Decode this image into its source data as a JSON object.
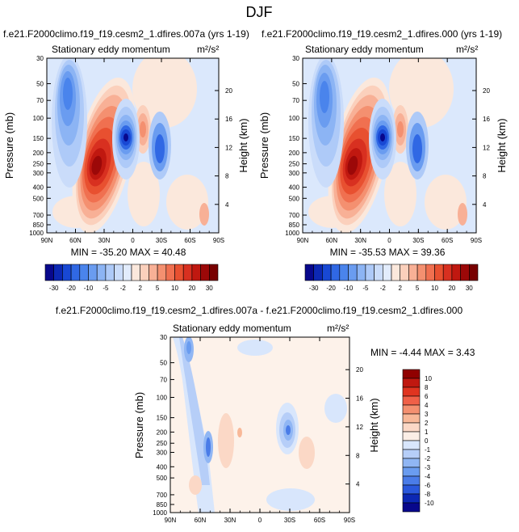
{
  "figure_title": "DJF",
  "colors": {
    "neg": [
      "#08088c",
      "#0c28b4",
      "#1848d4",
      "#3068e4",
      "#4a84ec",
      "#6a9cf0",
      "#8cb4f4",
      "#aecaf8",
      "#cadcfa",
      "#e2ecfc"
    ],
    "pos": [
      "#fbe8dc",
      "#fbd0bc",
      "#f8b096",
      "#f49070",
      "#f07050",
      "#e85030",
      "#d83020",
      "#c01810",
      "#9c0808",
      "#780000"
    ],
    "diff": [
      "#08088c",
      "#0c28b4",
      "#2a58dc",
      "#4a7ce8",
      "#6a9cf0",
      "#90b6f4",
      "#b6cef8",
      "#d8e6fc",
      "#fbeee6",
      "#fbd8c6",
      "#f8b898",
      "#f49070",
      "#f06048",
      "#e03420",
      "#c01810",
      "#900000"
    ],
    "background_model": "#dbe8fc",
    "background_diff": "#fdf2ea"
  },
  "chart_data": [
    {
      "id": "panel1",
      "type": "heatmap",
      "title": "f.e21.F2000climo.f19_f19.cesm2_1.dfires.007a (yrs 1-19)",
      "left_label": "Stationary eddy momentum",
      "units": "m²/s²",
      "ylabel": "Pressure (mb)",
      "ylabel_right": "Height (km)",
      "x_ticks": [
        "90N",
        "60N",
        "30N",
        "0",
        "30S",
        "60S",
        "90S"
      ],
      "x_range": [
        90,
        -90
      ],
      "y_ticks": [
        "30",
        "50",
        "70",
        "100",
        "150",
        "200",
        "250",
        "300",
        "400",
        "500",
        "700",
        "850",
        "1000"
      ],
      "y_range_mb": [
        30,
        1000
      ],
      "height_ticks": [
        "20",
        "16",
        "12",
        "8",
        "4"
      ],
      "stats": "MIN = -35.20   MAX = 40.48",
      "min": -35.2,
      "max": 40.48
    },
    {
      "id": "panel2",
      "type": "heatmap",
      "title": "f.e21.F2000climo.f19_f19.cesm2_1.dfires.000 (yrs 1-19)",
      "left_label": "Stationary eddy momentum",
      "units": "m²/s²",
      "ylabel": "Pressure (mb)",
      "ylabel_right": "Height (km)",
      "x_ticks": [
        "90N",
        "60N",
        "30N",
        "0",
        "30S",
        "60S",
        "90S"
      ],
      "x_range": [
        90,
        -90
      ],
      "y_ticks": [
        "30",
        "50",
        "70",
        "100",
        "150",
        "200",
        "250",
        "300",
        "400",
        "500",
        "700",
        "850",
        "1000"
      ],
      "y_range_mb": [
        30,
        1000
      ],
      "height_ticks": [
        "20",
        "16",
        "12",
        "8",
        "4"
      ],
      "stats": "MIN = -35.53   MAX = 39.36",
      "min": -35.53,
      "max": 39.36
    },
    {
      "id": "panel3",
      "type": "heatmap",
      "title": "f.e21.F2000climo.f19_f19.cesm2_1.dfires.007a - f.e21.F2000climo.f19_f19.cesm2_1.dfires.000",
      "left_label": "Stationary eddy momentum",
      "units": "m²/s²",
      "ylabel": "Pressure (mb)",
      "ylabel_right": "Height (km)",
      "x_ticks": [
        "90N",
        "60N",
        "30N",
        "0",
        "30S",
        "60S",
        "90S"
      ],
      "x_range": [
        90,
        -90
      ],
      "y_ticks": [
        "30",
        "50",
        "70",
        "100",
        "150",
        "200",
        "250",
        "300",
        "400",
        "500",
        "700",
        "850",
        "1000"
      ],
      "y_range_mb": [
        30,
        1000
      ],
      "height_ticks": [
        "20",
        "16",
        "12",
        "8",
        "4"
      ],
      "stats": "MIN = -4.44   MAX =  3.43",
      "min": -4.44,
      "max": 3.43
    }
  ],
  "colorbar_model": {
    "labels": [
      "-30",
      "-20",
      "-10",
      "-5",
      "-2",
      "2",
      "5",
      "10",
      "20",
      "30"
    ]
  },
  "colorbar_diff": {
    "labels": [
      "10",
      "8",
      "6",
      "4",
      "3",
      "2",
      "1",
      "0",
      "-1",
      "-2",
      "-3",
      "-4",
      "-6",
      "-8",
      "-10"
    ]
  }
}
